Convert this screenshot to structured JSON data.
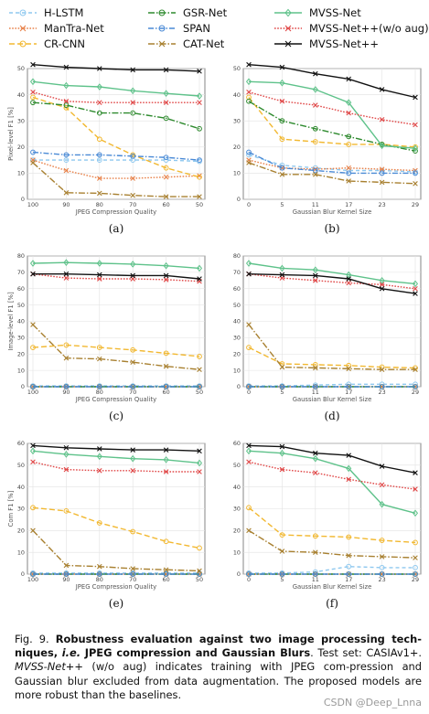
{
  "legend": [
    {
      "name": "H-LSTM",
      "color": "#8ec8ef",
      "dash": "4,3",
      "marker": "circle"
    },
    {
      "name": "ManTra-Net",
      "color": "#e8824a",
      "dash": "1.6,1.6",
      "marker": "x"
    },
    {
      "name": "CR-CNN",
      "color": "#f2b830",
      "dash": "6,3",
      "marker": "circle"
    },
    {
      "name": "GSR-Net",
      "color": "#2e8a2e",
      "dash": "7,2,1.5,2",
      "marker": "circle"
    },
    {
      "name": "SPAN",
      "color": "#4a8ad6",
      "dash": "6,2,1.5,2",
      "marker": "circle"
    },
    {
      "name": "CAT-Net",
      "color": "#a88030",
      "dash": "7,2,1.5,2",
      "marker": "x"
    },
    {
      "name": "MVSS-Net",
      "color": "#5ec28a",
      "dash": "",
      "marker": "diamond"
    },
    {
      "name": "MVSS-Net++(w/o aug)",
      "color": "#e04848",
      "dash": "1.6,1.6",
      "marker": "x"
    },
    {
      "name": "MVSS-Net++",
      "color": "#111111",
      "dash": "",
      "marker": "x"
    }
  ],
  "chart_data": [
    {
      "type": "line",
      "panel_label": "(a)",
      "xlabel": "JPEG Compression Quality",
      "ylabel": "Pixel-level F1 [%]",
      "categories": [
        100,
        90,
        80,
        70,
        60,
        50
      ],
      "ylim": [
        0,
        50
      ],
      "yticks": [
        0,
        10,
        20,
        30,
        40,
        50
      ],
      "series": [
        {
          "name": "H-LSTM",
          "values": [
            15,
            15,
            15,
            15,
            15,
            14.5
          ]
        },
        {
          "name": "ManTra-Net",
          "values": [
            15,
            11,
            8,
            8,
            8.5,
            9
          ]
        },
        {
          "name": "CR-CNN",
          "values": [
            39,
            35,
            23,
            17,
            12,
            8.5
          ]
        },
        {
          "name": "GSR-Net",
          "values": [
            37,
            36,
            33,
            33,
            31,
            27
          ]
        },
        {
          "name": "SPAN",
          "values": [
            18,
            17,
            17,
            16.5,
            16,
            15
          ]
        },
        {
          "name": "CAT-Net",
          "values": [
            14,
            2.5,
            2.3,
            1.5,
            1,
            1
          ]
        },
        {
          "name": "MVSS-Net",
          "values": [
            45,
            43.5,
            43,
            41.5,
            40.5,
            39.5
          ]
        },
        {
          "name": "MVSS-Net++(w/o aug)",
          "values": [
            41,
            37.5,
            37,
            37,
            37,
            37
          ]
        },
        {
          "name": "MVSS-Net++",
          "values": [
            51.5,
            50.5,
            50,
            49.5,
            49.5,
            49
          ]
        }
      ]
    },
    {
      "type": "line",
      "panel_label": "(b)",
      "xlabel": "Gaussian Blur Kernel Size",
      "ylabel": "",
      "categories": [
        0,
        5,
        11,
        17,
        23,
        29
      ],
      "ylim": [
        0,
        50
      ],
      "yticks": [
        0,
        10,
        20,
        30,
        40,
        50
      ],
      "series": [
        {
          "name": "H-LSTM",
          "values": [
            17,
            13,
            12,
            11,
            11,
            10.5
          ]
        },
        {
          "name": "ManTra-Net",
          "values": [
            15,
            12,
            11.5,
            12,
            11.5,
            11
          ]
        },
        {
          "name": "CR-CNN",
          "values": [
            39,
            23,
            22,
            21,
            21,
            20
          ]
        },
        {
          "name": "GSR-Net",
          "values": [
            37.5,
            30,
            27,
            24,
            21,
            18.5
          ]
        },
        {
          "name": "SPAN",
          "values": [
            18,
            12,
            11,
            10,
            10,
            10
          ]
        },
        {
          "name": "CAT-Net",
          "values": [
            14,
            9.5,
            9.5,
            7,
            6.5,
            6
          ]
        },
        {
          "name": "MVSS-Net",
          "values": [
            45,
            44.5,
            42,
            37,
            20.5,
            19.5
          ]
        },
        {
          "name": "MVSS-Net++(w/o aug)",
          "values": [
            41,
            37.5,
            36,
            33,
            30.5,
            28.5
          ]
        },
        {
          "name": "MVSS-Net++",
          "values": [
            51.5,
            50.5,
            48,
            46,
            42,
            39
          ]
        }
      ]
    },
    {
      "type": "line",
      "panel_label": "(c)",
      "xlabel": "JPEG Compression Quality",
      "ylabel": "Image-level F1 [%]",
      "categories": [
        100,
        90,
        80,
        70,
        60,
        50
      ],
      "ylim": [
        0,
        80
      ],
      "yticks": [
        0,
        10,
        20,
        30,
        40,
        50,
        60,
        70,
        80
      ],
      "series": [
        {
          "name": "H-LSTM",
          "values": [
            0.5,
            0.5,
            0.5,
            0.5,
            0.5,
            0.5
          ]
        },
        {
          "name": "ManTra-Net",
          "values": [
            0,
            0,
            0,
            0,
            0,
            0
          ]
        },
        {
          "name": "CR-CNN",
          "values": [
            24,
            25.5,
            24,
            22.5,
            20.5,
            18.5
          ]
        },
        {
          "name": "GSR-Net",
          "values": [
            0,
            0,
            0,
            0,
            0,
            0
          ]
        },
        {
          "name": "SPAN",
          "values": [
            0,
            0,
            0,
            0,
            0,
            0
          ]
        },
        {
          "name": "CAT-Net",
          "values": [
            38,
            17.5,
            17,
            15,
            12.5,
            10.5
          ]
        },
        {
          "name": "MVSS-Net",
          "values": [
            75.5,
            76,
            75.5,
            75,
            74,
            72.5
          ]
        },
        {
          "name": "MVSS-Net++(w/o aug)",
          "values": [
            69,
            66.5,
            66,
            66,
            65.5,
            64.5
          ]
        },
        {
          "name": "MVSS-Net++",
          "values": [
            69,
            69,
            68.5,
            68,
            68,
            66
          ]
        }
      ]
    },
    {
      "type": "line",
      "panel_label": "(d)",
      "xlabel": "Gaussian Blur Kernel Size",
      "ylabel": "",
      "categories": [
        0,
        5,
        11,
        17,
        23,
        29
      ],
      "ylim": [
        0,
        80
      ],
      "yticks": [
        0,
        10,
        20,
        30,
        40,
        50,
        60,
        70,
        80
      ],
      "series": [
        {
          "name": "H-LSTM",
          "values": [
            0.5,
            0.5,
            1,
            1.5,
            1.5,
            1.5
          ]
        },
        {
          "name": "ManTra-Net",
          "values": [
            0,
            0,
            0,
            0,
            0,
            0
          ]
        },
        {
          "name": "CR-CNN",
          "values": [
            24,
            14,
            13.5,
            13,
            12,
            11.5
          ]
        },
        {
          "name": "GSR-Net",
          "values": [
            0,
            0,
            0,
            0,
            0,
            0
          ]
        },
        {
          "name": "SPAN",
          "values": [
            0,
            0,
            0,
            0,
            0,
            0
          ]
        },
        {
          "name": "CAT-Net",
          "values": [
            38,
            12,
            11.5,
            11,
            10.5,
            10.5
          ]
        },
        {
          "name": "MVSS-Net",
          "values": [
            75.5,
            72.5,
            71.5,
            68.5,
            65,
            63
          ]
        },
        {
          "name": "MVSS-Net++(w/o aug)",
          "values": [
            69,
            66.5,
            65,
            63.5,
            62.5,
            60
          ]
        },
        {
          "name": "MVSS-Net++",
          "values": [
            69,
            68.5,
            68,
            66,
            60,
            57
          ]
        }
      ]
    },
    {
      "type": "line",
      "panel_label": "(e)",
      "xlabel": "JPEG Compression Quality",
      "ylabel": "Com F1 [%]",
      "categories": [
        100,
        90,
        80,
        70,
        60,
        50
      ],
      "ylim": [
        0,
        60
      ],
      "yticks": [
        0,
        10,
        20,
        30,
        40,
        50,
        60
      ],
      "series": [
        {
          "name": "H-LSTM",
          "values": [
            0.5,
            0.5,
            0.5,
            0.5,
            0.5,
            0.5
          ]
        },
        {
          "name": "ManTra-Net",
          "values": [
            0,
            0,
            0,
            0,
            0,
            0
          ]
        },
        {
          "name": "CR-CNN",
          "values": [
            30.5,
            29,
            23.5,
            19.5,
            15,
            12
          ]
        },
        {
          "name": "GSR-Net",
          "values": [
            0,
            0,
            0,
            0,
            0,
            0
          ]
        },
        {
          "name": "SPAN",
          "values": [
            0,
            0,
            0,
            0,
            0,
            0
          ]
        },
        {
          "name": "CAT-Net",
          "values": [
            20,
            4,
            3.5,
            2.5,
            2,
            1.5
          ]
        },
        {
          "name": "MVSS-Net",
          "values": [
            56.5,
            55,
            54,
            53,
            52.5,
            51
          ]
        },
        {
          "name": "MVSS-Net++(w/o aug)",
          "values": [
            51.5,
            48,
            47.5,
            47.5,
            47,
            47
          ]
        },
        {
          "name": "MVSS-Net++",
          "values": [
            59,
            58,
            57.5,
            57,
            57,
            56.5
          ]
        }
      ]
    },
    {
      "type": "line",
      "panel_label": "(f)",
      "xlabel": "Gaussian Blur Kernel Size",
      "ylabel": "",
      "categories": [
        0,
        5,
        11,
        17,
        23,
        29
      ],
      "ylim": [
        0,
        60
      ],
      "yticks": [
        0,
        10,
        20,
        30,
        40,
        50,
        60
      ],
      "series": [
        {
          "name": "H-LSTM",
          "values": [
            0.5,
            0.5,
            1,
            3.5,
            3,
            3
          ]
        },
        {
          "name": "ManTra-Net",
          "values": [
            0,
            0,
            0,
            0,
            0,
            0
          ]
        },
        {
          "name": "CR-CNN",
          "values": [
            30.5,
            18,
            17.5,
            17,
            15.5,
            14.5
          ]
        },
        {
          "name": "GSR-Net",
          "values": [
            0,
            0,
            0,
            0,
            0,
            0
          ]
        },
        {
          "name": "SPAN",
          "values": [
            0,
            0,
            0,
            0,
            0,
            0
          ]
        },
        {
          "name": "CAT-Net",
          "values": [
            20,
            10.5,
            10,
            8.5,
            8,
            7.5
          ]
        },
        {
          "name": "MVSS-Net",
          "values": [
            56.5,
            55.5,
            53,
            48.5,
            32,
            28
          ]
        },
        {
          "name": "MVSS-Net++(w/o aug)",
          "values": [
            51.5,
            48,
            46.5,
            43.5,
            41,
            39
          ]
        },
        {
          "name": "MVSS-Net++",
          "values": [
            59,
            58.5,
            55.5,
            54.5,
            49.5,
            46.5
          ]
        }
      ]
    }
  ],
  "caption": {
    "fig_label": "Fig. 9.",
    "bold_a": "Robustness evaluation against two image processing tech-niques,",
    "bold_ie": "i.e.",
    "bold_b": "JPEG compression and Gaussian Blurs",
    "rest_a": ". Test set: CASIAv1+.",
    "model": "MVSS-Net++",
    "rest_b": "(w/o aug) indicates training with JPEG com-pression and Gaussian blur excluded from data augmentation. The proposed models are more robust than the baselines."
  },
  "watermark": "CSDN @Deep_Lnna"
}
